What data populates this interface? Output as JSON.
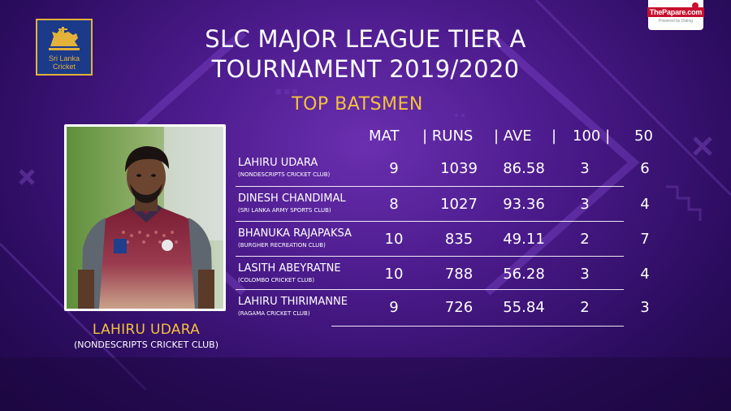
{
  "header": {
    "title_line1": "SLC MAJOR LEAGUE TIER A",
    "title_line2": "TOURNAMENT 2019/2020",
    "subtitle": "TOP BATSMEN"
  },
  "logos": {
    "slc": {
      "line1": "Sri Lanka",
      "line2": "Cricket",
      "icon": "lion-crest-icon"
    },
    "papare": {
      "main": "ThePapare.com",
      "sub": "Powered by Dialog"
    }
  },
  "featured": {
    "name": "LAHIRU UDARA",
    "club": "(NONDESCRIPTS CRICKET CLUB)"
  },
  "table": {
    "columns": [
      "MAT",
      "| RUNS",
      "| AVE",
      "|",
      "100 |",
      "50"
    ],
    "rows": [
      {
        "name": "LAHIRU UDARA",
        "club": "(NONDESCRIPTS CRICKET CLUB)",
        "mat": "9",
        "runs": "1039",
        "ave": "86.58",
        "hundreds": "3",
        "fifties": "6"
      },
      {
        "name": "DINESH CHANDIMAL",
        "club": "(SRI LANKA ARMY SPORTS CLUB)",
        "mat": "8",
        "runs": "1027",
        "ave": "93.36",
        "hundreds": "3",
        "fifties": "4"
      },
      {
        "name": "BHANUKA RAJAPAKSA",
        "club": "(BURGHER RECREATION CLUB)",
        "mat": "10",
        "runs": "835",
        "ave": "49.11",
        "hundreds": "2",
        "fifties": "7"
      },
      {
        "name": "LASITH ABEYRATNE",
        "club": "(COLOMBO CRICKET CLUB)",
        "mat": "10",
        "runs": "788",
        "ave": "56.28",
        "hundreds": "3",
        "fifties": "4"
      },
      {
        "name": "LAHIRU THIRIMANNE",
        "club": "(RAGAMA CRICKET CLUB)",
        "mat": "9",
        "runs": "726",
        "ave": "55.84",
        "hundreds": "2",
        "fifties": "3"
      }
    ]
  },
  "colors": {
    "background": "#4a1a8a",
    "accent": "#f4c23a",
    "text": "#ffffff"
  }
}
